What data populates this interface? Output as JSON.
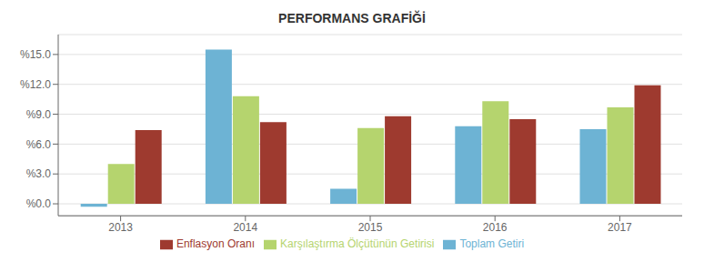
{
  "chart_data": {
    "type": "bar",
    "title": "PERFORMANS GRAFİĞİ",
    "categories": [
      "2013",
      "2014",
      "2015",
      "2016",
      "2017"
    ],
    "series": [
      {
        "name": "Toplam Getiri",
        "color": "#6db3d4",
        "values": [
          -0.3,
          15.5,
          1.5,
          7.8,
          7.5
        ]
      },
      {
        "name": "Karşılaştırma Ölçütünün Getirisi",
        "color": "#b5d46e",
        "values": [
          4.0,
          10.8,
          7.6,
          10.3,
          9.7
        ]
      },
      {
        "name": "Enflasyon Oranı",
        "color": "#9e3a2f",
        "values": [
          7.4,
          8.2,
          8.8,
          8.5,
          11.9
        ]
      }
    ],
    "ylim": [
      -1.2,
      17.0
    ],
    "yticks": [
      {
        "value": 0,
        "label": "%0.0"
      },
      {
        "value": 3,
        "label": "%3.0"
      },
      {
        "value": 6,
        "label": "%6.0"
      },
      {
        "value": 9,
        "label": "%9.0"
      },
      {
        "value": 12,
        "label": "%12.0"
      },
      {
        "value": 15,
        "label": "%15.0"
      }
    ],
    "grid": true,
    "legend": "bottom"
  }
}
